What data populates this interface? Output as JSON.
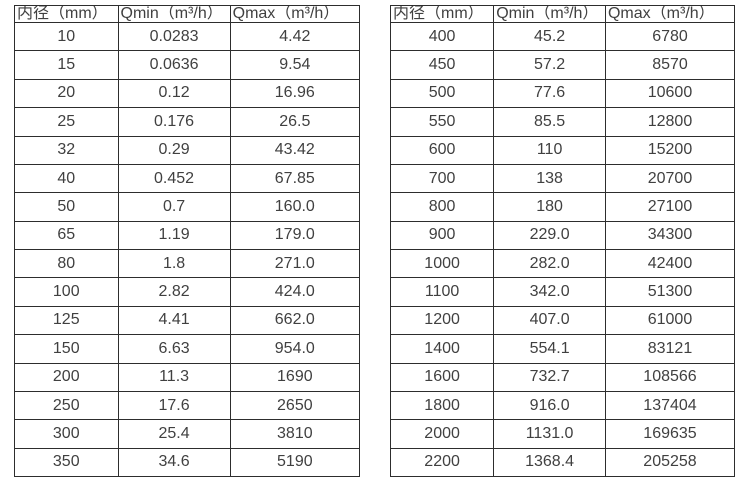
{
  "colors": {
    "background": "#ffffff",
    "border": "#2d2d2d",
    "text": "#404040"
  },
  "chart_data": [
    {
      "type": "table",
      "title": "",
      "headers": [
        "内径（mm）",
        "Qmin（m³/h）",
        "Qmax（m³/h）"
      ],
      "rows": [
        [
          "10",
          "0.0283",
          "4.42"
        ],
        [
          "15",
          "0.0636",
          "9.54"
        ],
        [
          "20",
          "0.12",
          "16.96"
        ],
        [
          "25",
          "0.176",
          "26.5"
        ],
        [
          "32",
          "0.29",
          "43.42"
        ],
        [
          "40",
          "0.452",
          "67.85"
        ],
        [
          "50",
          "0.7",
          "160.0"
        ],
        [
          "65",
          "1.19",
          "179.0"
        ],
        [
          "80",
          "1.8",
          "271.0"
        ],
        [
          "100",
          "2.82",
          "424.0"
        ],
        [
          "125",
          "4.41",
          "662.0"
        ],
        [
          "150",
          "6.63",
          "954.0"
        ],
        [
          "200",
          "11.3",
          "1690"
        ],
        [
          "250",
          "17.6",
          "2650"
        ],
        [
          "300",
          "25.4",
          "3810"
        ],
        [
          "350",
          "34.6",
          "5190"
        ]
      ]
    },
    {
      "type": "table",
      "title": "",
      "headers": [
        "内径（mm）",
        "Qmin（m³/h）",
        "Qmax（m³/h）"
      ],
      "rows": [
        [
          "400",
          "45.2",
          "6780"
        ],
        [
          "450",
          "57.2",
          "8570"
        ],
        [
          "500",
          "77.6",
          "10600"
        ],
        [
          "550",
          "85.5",
          "12800"
        ],
        [
          "600",
          "110",
          "15200"
        ],
        [
          "700",
          "138",
          "20700"
        ],
        [
          "800",
          "180",
          "27100"
        ],
        [
          "900",
          "229.0",
          "34300"
        ],
        [
          "1000",
          "282.0",
          "42400"
        ],
        [
          "1100",
          "342.0",
          "51300"
        ],
        [
          "1200",
          "407.0",
          "61000"
        ],
        [
          "1400",
          "554.1",
          "83121"
        ],
        [
          "1600",
          "732.7",
          "108566"
        ],
        [
          "1800",
          "916.0",
          "137404"
        ],
        [
          "2000",
          "1131.0",
          "169635"
        ],
        [
          "2200",
          "1368.4",
          "205258"
        ]
      ]
    }
  ]
}
